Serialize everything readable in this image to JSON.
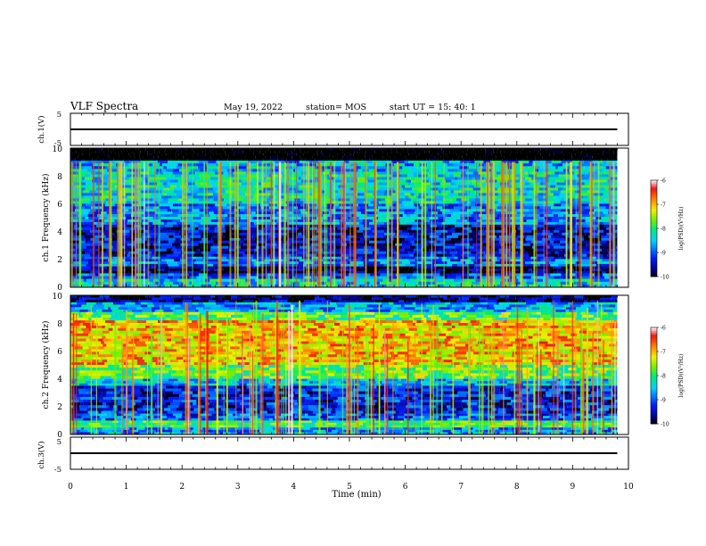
{
  "header": {
    "title": "VLF Spectra",
    "date": "May 19, 2022",
    "station": "station= MOS",
    "start": "start  UT =   15: 40: 1"
  },
  "colorbar_labels": [
    "-6",
    "-7",
    "-8",
    "-9",
    "-10"
  ],
  "colorbar_title": "log(PSD)(V²/Hz)",
  "chart_data": [
    {
      "type": "line",
      "id": "ch1",
      "ylabel": "ch.1(V)",
      "ylim": [
        -5,
        5
      ],
      "yticks": [
        "5",
        "-5"
      ],
      "x": [
        0,
        9.8
      ],
      "values": [
        0,
        0
      ],
      "color": "#000000"
    },
    {
      "type": "heatmap",
      "id": "spec1",
      "ylabel": "ch.1 Frequency (kHz)",
      "ylim": [
        0,
        10
      ],
      "yticks": [
        "0",
        "2",
        "4",
        "6",
        "8",
        "10"
      ],
      "xlim": [
        0,
        9.8
      ],
      "colorscale": {
        "min": -10,
        "max": -6,
        "label": "log(PSD)(V²/Hz)"
      },
      "bands": [
        {
          "f0": 9.1,
          "f1": 10,
          "level": -10.5
        },
        {
          "f0": 8.3,
          "f1": 9.1,
          "level": -8.6
        },
        {
          "f0": 6.0,
          "f1": 8.3,
          "level": -8.3
        },
        {
          "f0": 4.5,
          "f1": 6.0,
          "level": -8.8
        },
        {
          "f0": 2.2,
          "f1": 4.5,
          "level": -9.4
        },
        {
          "f0": 1.5,
          "f1": 2.2,
          "level": -8.9
        },
        {
          "f0": 1.0,
          "f1": 1.5,
          "level": -9.8
        },
        {
          "f0": 0.6,
          "f1": 1.0,
          "level": -9.0
        },
        {
          "f0": 0.0,
          "f1": 0.6,
          "level": -8.4
        }
      ]
    },
    {
      "type": "heatmap",
      "id": "spec2",
      "ylabel": "ch.2 Frequency (kHz)",
      "ylim": [
        0,
        10
      ],
      "yticks": [
        "0",
        "2",
        "4",
        "6",
        "8",
        "10"
      ],
      "xlim": [
        0,
        9.8
      ],
      "colorscale": {
        "min": -10,
        "max": -6,
        "label": "log(PSD)(V²/Hz)"
      },
      "bands": [
        {
          "f0": 9.5,
          "f1": 10,
          "level": -9.7
        },
        {
          "f0": 8.8,
          "f1": 9.5,
          "level": -8.6
        },
        {
          "f0": 8.2,
          "f1": 8.8,
          "level": -7.8
        },
        {
          "f0": 5.0,
          "f1": 8.2,
          "level": -7.0
        },
        {
          "f0": 4.0,
          "f1": 5.0,
          "level": -7.7
        },
        {
          "f0": 3.5,
          "f1": 4.0,
          "level": -8.5
        },
        {
          "f0": 1.5,
          "f1": 3.5,
          "level": -9.3
        },
        {
          "f0": 1.0,
          "f1": 1.5,
          "level": -9.0
        },
        {
          "f0": 0.5,
          "f1": 1.0,
          "level": -7.9
        },
        {
          "f0": 0.0,
          "f1": 0.5,
          "level": -8.7
        }
      ]
    },
    {
      "type": "line",
      "id": "ch3",
      "ylabel": "ch.3(V)",
      "ylim": [
        -5,
        5
      ],
      "yticks": [
        "5",
        "-5"
      ],
      "x": [
        0,
        9.8
      ],
      "values": [
        0,
        0
      ],
      "color": "#000000"
    }
  ],
  "xaxis": {
    "label": "Time (min)",
    "range": [
      0,
      10
    ],
    "ticks": [
      "0",
      "1",
      "2",
      "3",
      "4",
      "5",
      "6",
      "7",
      "8",
      "9",
      "10"
    ]
  }
}
